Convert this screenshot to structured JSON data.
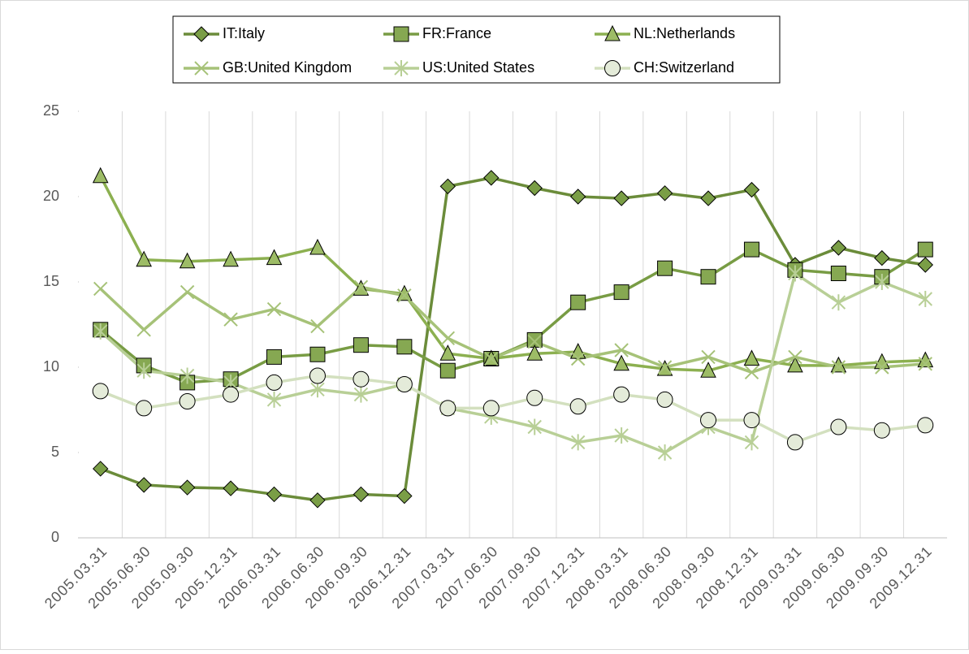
{
  "chart_data": {
    "type": "line",
    "categories": [
      "2005.03.31",
      "2005.06.30",
      "2005.09.30",
      "2005.12.31",
      "2006.03.31",
      "2006.06.30",
      "2006.09.30",
      "2006.12.31",
      "2007.03.31",
      "2007.06.30",
      "2007.09.30",
      "2007.12.31",
      "2008.03.31",
      "2008.06.30",
      "2008.09.30",
      "2008.12.31",
      "2009.03.31",
      "2009.06.30",
      "2009.09.30",
      "2009.12.31"
    ],
    "series": [
      {
        "name": "IT:Italy",
        "color": "#6b8c3a",
        "fill": "#7a9e46",
        "marker": "diamond",
        "values": [
          4.05,
          3.1,
          2.95,
          2.9,
          2.55,
          2.2,
          2.55,
          2.45,
          20.6,
          21.1,
          20.5,
          20.0,
          19.9,
          20.2,
          19.9,
          20.4,
          16.0,
          17.0,
          16.4,
          16.0
        ]
      },
      {
        "name": "FR:France",
        "color": "#789c44",
        "fill": "#86a852",
        "marker": "square",
        "values": [
          12.2,
          10.1,
          9.1,
          9.3,
          10.6,
          10.75,
          11.3,
          11.2,
          9.8,
          10.5,
          11.6,
          13.8,
          14.4,
          15.8,
          15.3,
          16.9,
          15.7,
          15.5,
          15.3,
          16.9
        ]
      },
      {
        "name": "NL:Netherlands",
        "color": "#8cb050",
        "fill": "#9dbc66",
        "marker": "triangle",
        "values": [
          21.2,
          16.3,
          16.2,
          16.3,
          16.4,
          17.0,
          14.6,
          14.3,
          10.8,
          10.5,
          10.8,
          10.9,
          10.2,
          9.9,
          9.8,
          10.5,
          10.1,
          10.1,
          10.3,
          10.4
        ]
      },
      {
        "name": "GB:United Kingdom",
        "color": "#a6c278",
        "fill": "none",
        "marker": "x",
        "values": [
          14.6,
          12.2,
          14.4,
          12.8,
          13.4,
          12.4,
          14.7,
          14.2,
          11.7,
          10.5,
          11.5,
          10.5,
          11.0,
          10.0,
          10.6,
          9.7,
          10.6,
          10.0,
          10.0,
          10.2
        ]
      },
      {
        "name": "US:United States",
        "color": "#b8cf96",
        "fill": "none",
        "marker": "star",
        "values": [
          12.1,
          9.8,
          9.5,
          9.1,
          8.1,
          8.7,
          8.4,
          9.0,
          7.6,
          7.1,
          6.5,
          5.6,
          6.0,
          5.0,
          6.5,
          5.6,
          15.5,
          13.8,
          15.0,
          14.0
        ]
      },
      {
        "name": "CH:Switzerland",
        "color": "#d3e0bf",
        "fill": "#e4ebd9",
        "marker": "circle",
        "values": [
          8.6,
          7.6,
          8.0,
          8.4,
          9.1,
          9.5,
          9.3,
          9.0,
          7.6,
          7.6,
          8.2,
          7.7,
          8.4,
          8.1,
          6.9,
          6.9,
          5.6,
          6.5,
          6.3,
          6.6
        ]
      }
    ],
    "ylim": [
      0,
      25
    ],
    "yticks": [
      0,
      5,
      10,
      15,
      20,
      25
    ],
    "grid": false,
    "legend": "top"
  }
}
